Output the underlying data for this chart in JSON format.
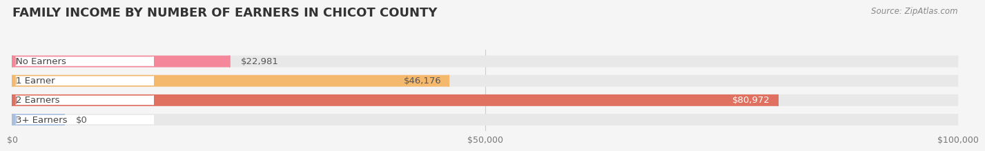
{
  "title": "FAMILY INCOME BY NUMBER OF EARNERS IN CHICOT COUNTY",
  "source": "Source: ZipAtlas.com",
  "categories": [
    "No Earners",
    "1 Earner",
    "2 Earners",
    "3+ Earners"
  ],
  "values": [
    22981,
    46176,
    80972,
    0
  ],
  "max_value": 100000,
  "bar_colors": [
    "#f4889a",
    "#f5b96e",
    "#e07060",
    "#a8c0e0"
  ],
  "label_colors": [
    "#555555",
    "#555555",
    "#ffffff",
    "#555555"
  ],
  "bg_color": "#f5f5f5",
  "bar_bg_color": "#e8e8e8",
  "value_labels": [
    "$22,981",
    "$46,176",
    "$80,972",
    "$0"
  ],
  "xtick_labels": [
    "$0",
    "$50,000",
    "$100,000"
  ],
  "xtick_values": [
    0,
    50000,
    100000
  ],
  "title_fontsize": 13,
  "label_fontsize": 9.5,
  "source_fontsize": 8.5,
  "tick_fontsize": 9
}
